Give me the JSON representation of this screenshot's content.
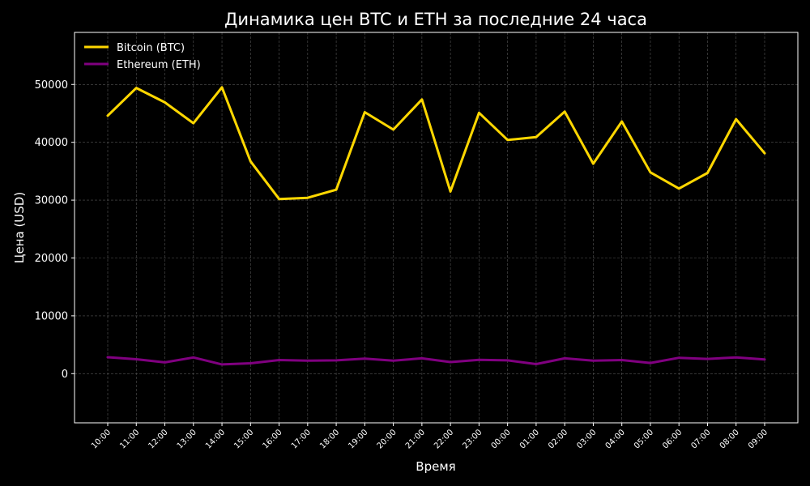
{
  "chart_data": {
    "type": "line",
    "title": "Динамика цен BTC и ETH за последние 24 часа",
    "xlabel": "Время",
    "ylabel": "Цена (USD)",
    "categories": [
      "10:00",
      "11:00",
      "12:00",
      "13:00",
      "14:00",
      "15:00",
      "16:00",
      "17:00",
      "18:00",
      "19:00",
      "20:00",
      "21:00",
      "22:00",
      "23:00",
      "00:00",
      "01:00",
      "02:00",
      "03:00",
      "04:00",
      "05:00",
      "06:00",
      "07:00",
      "08:00",
      "09:00"
    ],
    "ylim": [
      -8500,
      59000
    ],
    "yticks": [
      0,
      10000,
      20000,
      30000,
      40000,
      50000
    ],
    "grid": true,
    "legend_position": "top-left",
    "background": "#000000",
    "series": [
      {
        "name": "Bitcoin (BTC)",
        "color": "#FFD700",
        "values": [
          44600,
          49400,
          46900,
          43300,
          49500,
          36700,
          30200,
          30400,
          31800,
          45200,
          42200,
          47400,
          31500,
          45100,
          40400,
          40900,
          45300,
          36300,
          43600,
          34800,
          32000,
          34700,
          44000,
          38100
        ]
      },
      {
        "name": "Ethereum (ETH)",
        "color": "#800080",
        "values": [
          2850,
          2500,
          1950,
          2800,
          1600,
          1800,
          2350,
          2250,
          2300,
          2600,
          2250,
          2650,
          2000,
          2400,
          2300,
          1650,
          2650,
          2250,
          2350,
          1850,
          2750,
          2550,
          2800,
          2450
        ]
      }
    ]
  }
}
